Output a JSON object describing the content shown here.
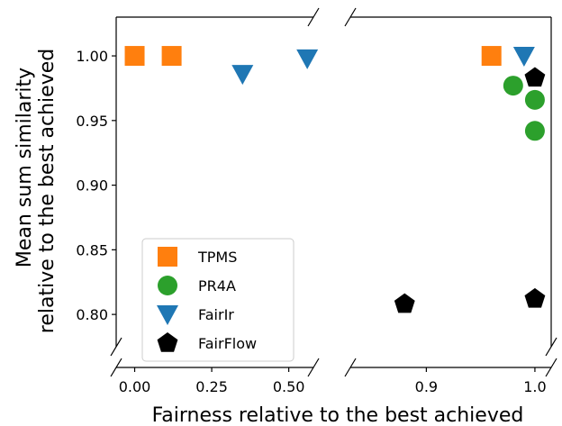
{
  "chart_data": {
    "type": "scatter",
    "xlabel": "Fairness relative to the best achieved",
    "ylabel_lines": [
      "Mean sum similarity",
      "relative to the best achieved"
    ],
    "x_axis_broken": true,
    "x_segments": [
      {
        "range": [
          -0.06,
          0.58
        ],
        "ticks": [
          0.0,
          0.25,
          0.5
        ],
        "tick_labels": [
          "0.00",
          "0.25",
          "0.50"
        ]
      },
      {
        "range": [
          0.83,
          1.015
        ],
        "ticks": [
          0.9,
          1.0
        ],
        "tick_labels": [
          "0.9",
          "1.0"
        ]
      }
    ],
    "y_axis_broken": true,
    "ylim": [
      0.775,
      1.03
    ],
    "y_ticks": [
      0.8,
      0.85,
      0.9,
      0.95,
      1.0
    ],
    "y_tick_labels": [
      "0.80",
      "0.85",
      "0.90",
      "0.95",
      "1.00"
    ],
    "grid": false,
    "legend_position": "lower-left",
    "series": [
      {
        "name": "TPMS",
        "marker": "square",
        "color": "#ff7f0e",
        "points": [
          [
            0.0,
            1.0
          ],
          [
            0.12,
            1.0
          ],
          [
            0.96,
            1.0
          ]
        ]
      },
      {
        "name": "PR4A",
        "marker": "circle",
        "color": "#2ca02c",
        "points": [
          [
            0.98,
            0.977
          ],
          [
            1.0,
            0.966
          ],
          [
            1.0,
            0.942
          ]
        ]
      },
      {
        "name": "FairIr",
        "marker": "triangle-down",
        "color": "#1f77b4",
        "points": [
          [
            0.35,
            0.986
          ],
          [
            0.56,
            0.998
          ],
          [
            0.99,
            1.0
          ]
        ]
      },
      {
        "name": "FairFlow",
        "marker": "pentagon",
        "color": "#000000",
        "points": [
          [
            0.88,
            0.808
          ],
          [
            1.0,
            0.983
          ],
          [
            1.0,
            0.812
          ]
        ]
      }
    ]
  }
}
